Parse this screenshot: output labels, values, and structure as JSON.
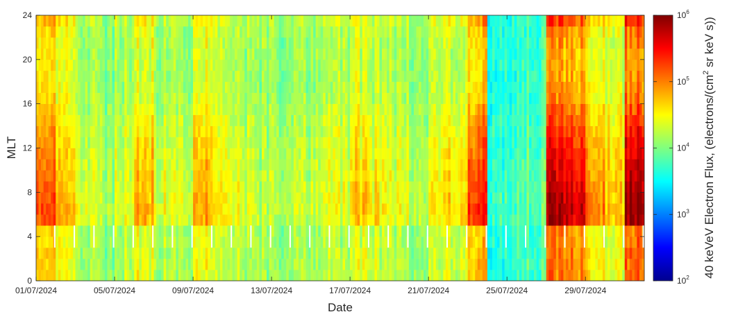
{
  "chart_data": {
    "type": "heatmap",
    "title": "",
    "xlabel": "Date",
    "ylabel": "MLT",
    "x_tick_labels": [
      "01/07/2024",
      "05/07/2024",
      "09/07/2024",
      "13/07/2024",
      "17/07/2024",
      "21/07/2024",
      "25/07/2024",
      "29/07/2024"
    ],
    "x_tick_days": [
      0,
      4,
      8,
      12,
      16,
      20,
      24,
      28
    ],
    "x_range_days": [
      0,
      31
    ],
    "y_ticks": [
      0,
      4,
      8,
      12,
      16,
      20,
      24
    ],
    "ylim": [
      0,
      24
    ],
    "colorbar": {
      "label_prefix": "40 keVeV Electron Flux, (electrons/(cm",
      "label_sup": "2",
      "label_suffix": " sr keV s))",
      "tick_base": "10",
      "tick_exponents": [
        "2",
        "3",
        "4",
        "5",
        "6"
      ],
      "log_range": [
        2,
        6
      ],
      "colormap": "jet"
    },
    "daily_log_flux_mean": [
      4.7,
      4.4,
      4.2,
      4.1,
      4.2,
      4.5,
      4.2,
      4.2,
      4.5,
      4.3,
      4.2,
      4.1,
      4.1,
      4.1,
      4.2,
      4.2,
      4.4,
      4.3,
      4.2,
      4.1,
      4.3,
      4.4,
      4.8,
      3.6,
      3.7,
      3.8,
      5.1,
      5.0,
      4.6,
      4.4,
      5.2,
      4.4
    ],
    "mlt_bins": [
      0.5,
      1.5,
      2.5,
      3.5,
      4.5,
      5.5,
      6.5,
      7.5,
      8.5,
      9.5,
      10.5,
      11.5,
      12.5,
      13.5,
      14.5,
      15.5,
      16.5,
      17.5,
      18.5,
      19.5,
      20.5,
      21.5,
      22.5,
      23.5
    ],
    "mlt_log_flux_offset": [
      -0.05,
      -0.05,
      -0.05,
      -0.1,
      -0.1,
      0.5,
      0.55,
      0.5,
      0.45,
      0.4,
      0.35,
      0.3,
      0.25,
      0.2,
      0.1,
      0.0,
      -0.1,
      -0.15,
      -0.2,
      -0.2,
      -0.2,
      -0.15,
      -0.1,
      0.1
    ],
    "data_gap_mlt_range": [
      3,
      5
    ]
  }
}
